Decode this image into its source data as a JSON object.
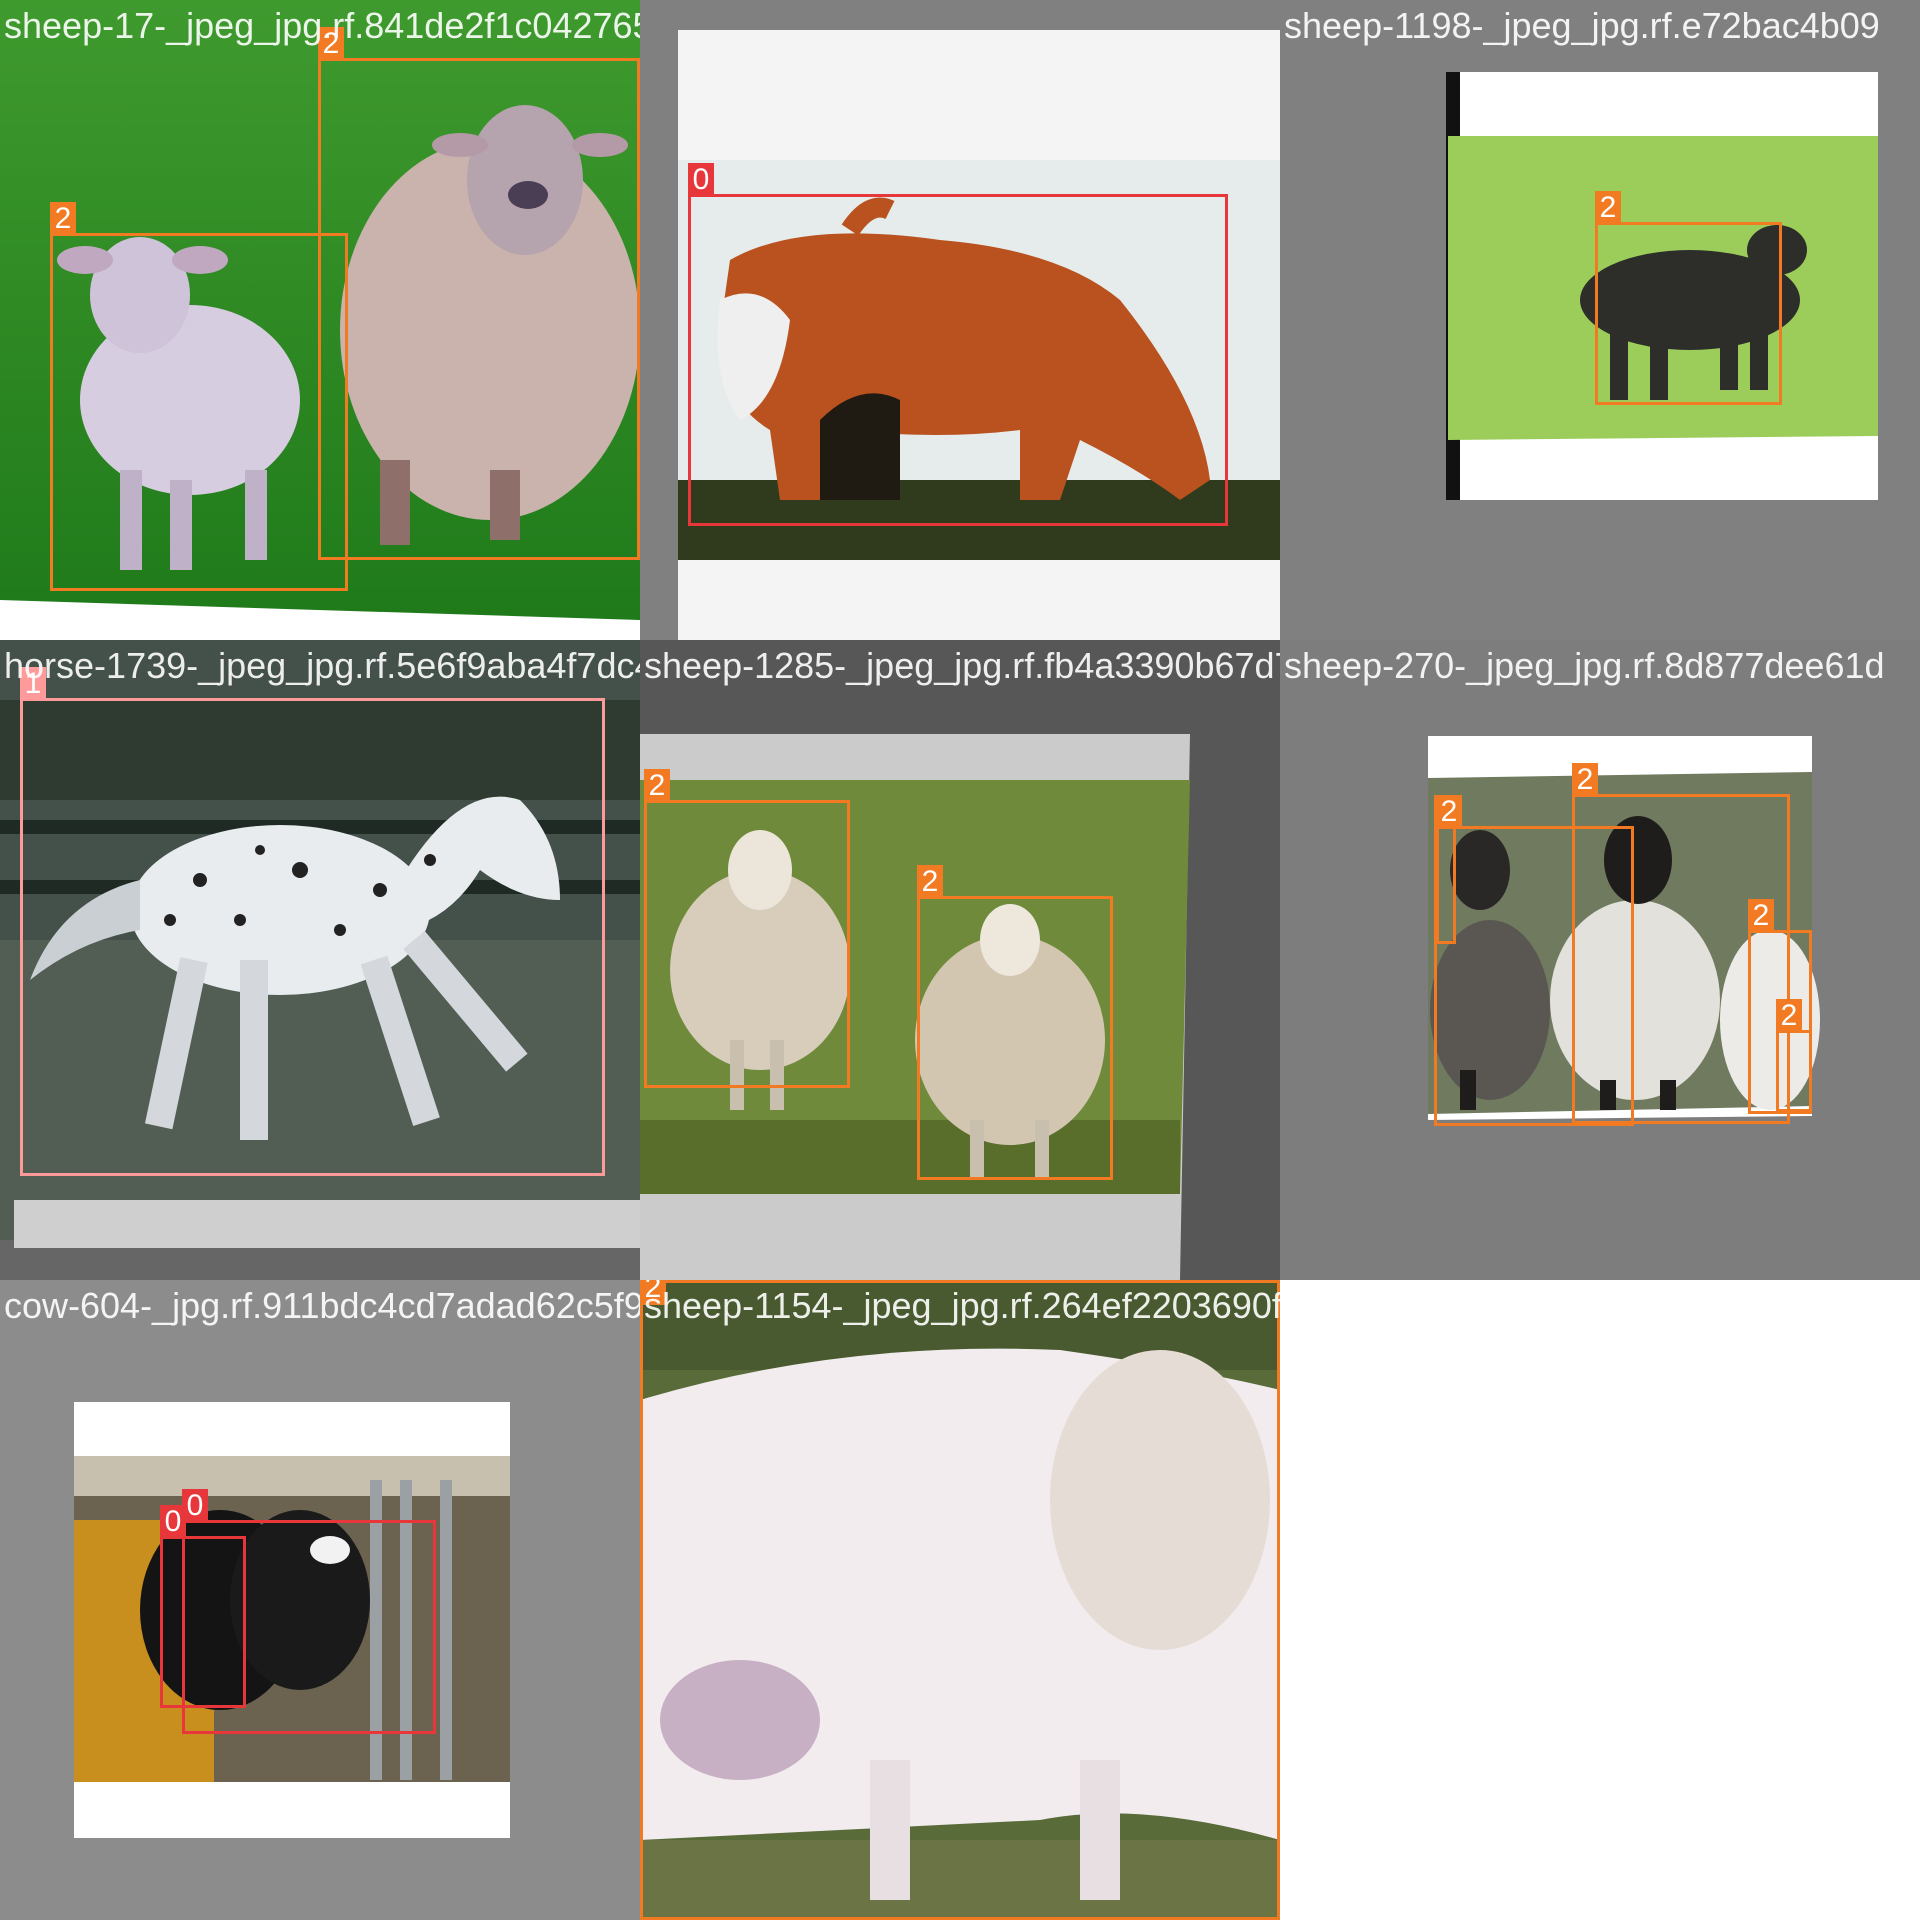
{
  "colors": {
    "class_0": "#e8373a",
    "class_1": "#ff9a9a",
    "class_2": "#f27a22",
    "pad_gray": "#808080",
    "label_text": "#ffffff"
  },
  "tiles": [
    {
      "filename": "sheep-17-_jpeg_jpg.rf.841de2f1c0427658c723-_jpeg_jpg.rf.3dcb5dc8fcbfe9e8dcb",
      "scene": "two sheep on green grass",
      "boxes": [
        {
          "cls": "2"
        },
        {
          "cls": "2"
        }
      ]
    },
    {
      "filename": "cow-723-_jpeg_jpg.rf.3dcb5dc8fcbfe9e8dcb",
      "scene": "brown and white cow grazing",
      "boxes": [
        {
          "cls": "0"
        }
      ]
    },
    {
      "filename": "sheep-1198-_jpeg_jpg.rf.e72bac4b09",
      "scene": "black sheep on grass",
      "boxes": [
        {
          "cls": "2"
        }
      ]
    },
    {
      "filename": "horse-1739-_jpeg_jpg.rf.5e6f9aba4f7dc42e",
      "scene": "spotted appaloosa horse running",
      "boxes": [
        {
          "cls": "1"
        }
      ]
    },
    {
      "filename": "sheep-1285-_jpeg_jpg.rf.fb4a3390b67d729b",
      "scene": "two sheep on hillside",
      "boxes": [
        {
          "cls": "2"
        },
        {
          "cls": "2"
        }
      ]
    },
    {
      "filename": "sheep-270-_jpeg_jpg.rf.8d877dee61d",
      "scene": "flock of black-faced sheep",
      "boxes": [
        {
          "cls": "2"
        },
        {
          "cls": "2"
        },
        {
          "cls": "2"
        },
        {
          "cls": "2"
        },
        {
          "cls": "2"
        }
      ]
    },
    {
      "filename": "cow-604-_jpg.rf.911bdc4cd7adad62c5f9e9f4",
      "scene": "dairy cows in barn",
      "boxes": [
        {
          "cls": "0"
        },
        {
          "cls": "0"
        }
      ]
    },
    {
      "filename": "sheep-1154-_jpeg_jpg.rf.264ef2203690f30",
      "scene": "close-up of white sheep",
      "boxes": [
        {
          "cls": "2"
        }
      ]
    }
  ]
}
